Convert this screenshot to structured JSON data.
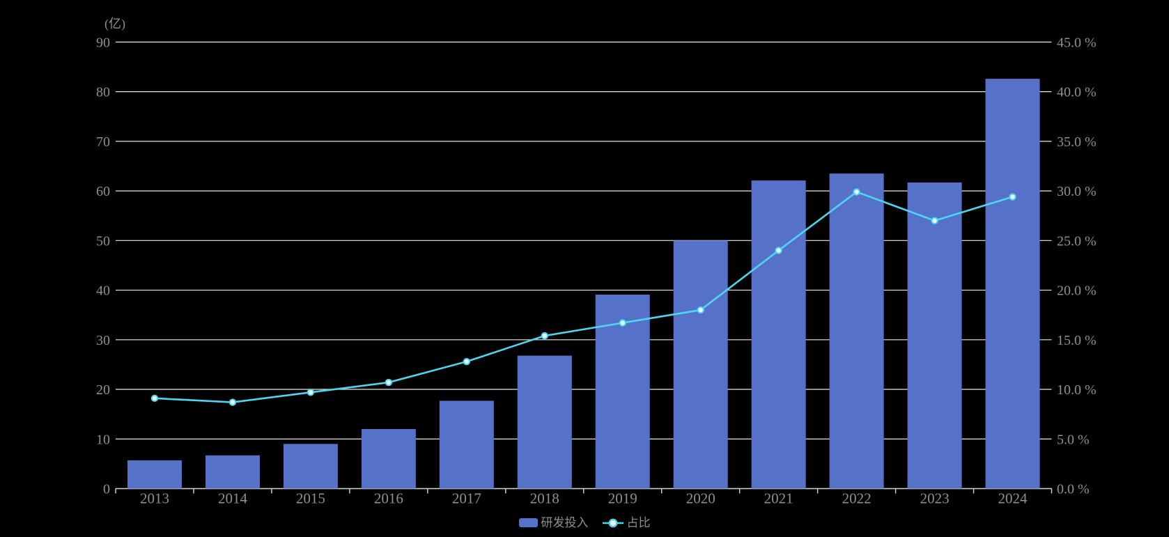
{
  "chart_data": {
    "type": "combo",
    "title": "",
    "categories": [
      "2013",
      "2014",
      "2015",
      "2016",
      "2017",
      "2018",
      "2019",
      "2020",
      "2021",
      "2022",
      "2023",
      "2024"
    ],
    "series": [
      {
        "name": "研发投入",
        "type": "bar",
        "axis": "left",
        "unit": "亿",
        "color": "#5672c8",
        "values": [
          5.7,
          6.7,
          9.0,
          12.0,
          17.7,
          26.8,
          39.1,
          50.0,
          62.1,
          63.5,
          61.7,
          82.6
        ]
      },
      {
        "name": "占比",
        "type": "line",
        "axis": "right",
        "unit": "%",
        "color": "#4dd5f2",
        "marker_fill": "#eafdff",
        "values": [
          9.1,
          8.7,
          9.7,
          10.7,
          12.8,
          15.4,
          16.7,
          18.0,
          24.0,
          29.9,
          27.0,
          29.4
        ]
      }
    ],
    "left_axis": {
      "name": "(亿)",
      "min": 0,
      "max": 90,
      "step": 10,
      "tick_labels": [
        "0",
        "10",
        "20",
        "30",
        "40",
        "50",
        "60",
        "70",
        "80",
        "90"
      ]
    },
    "right_axis": {
      "min": 0,
      "max": 45,
      "step": 5,
      "tick_labels": [
        "0.0 %",
        "5.0 %",
        "10.0 %",
        "15.0 %",
        "20.0 %",
        "25.0 %",
        "30.0 %",
        "35.0 %",
        "40.0 %",
        "45.0 %"
      ]
    },
    "legend": {
      "position": "bottom-center",
      "items": [
        {
          "label": "研发投入",
          "marker": "bar"
        },
        {
          "label": "占比",
          "marker": "line"
        }
      ]
    },
    "grid": true,
    "colors": {
      "background": "#000000",
      "grid_line": "#e8e8e8",
      "axis_line": "#d6d6d6",
      "text": "#8e8f96"
    }
  }
}
